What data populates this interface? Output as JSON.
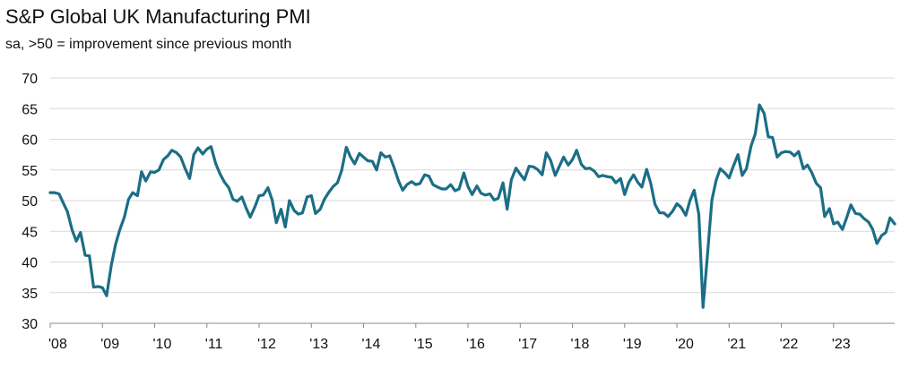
{
  "chart_data": {
    "type": "line",
    "title": "S&P Global UK Manufacturing PMI",
    "subtitle": "sa, >50 = improvement since previous month",
    "xlabel": "",
    "ylabel": "",
    "ylim": [
      30,
      70
    ],
    "yticks": [
      70,
      65,
      60,
      55,
      50,
      45,
      40,
      35,
      30
    ],
    "xlim": [
      "2008-01",
      "2023-12"
    ],
    "xtick_labels": [
      "'08",
      "'09",
      "'10",
      "'11",
      "'12",
      "'13",
      "'14",
      "'15",
      "'16",
      "'17",
      "'18",
      "'19",
      "'20",
      "'21",
      "'22",
      "'23"
    ],
    "grid": "horizontal",
    "legend": "none",
    "line_color": "#1b6e86",
    "grid_color": "#d9d9d9",
    "series": [
      {
        "values": [
          [
            2008.0,
            51.3
          ],
          [
            2008.08,
            51.3
          ],
          [
            2008.17,
            51.1
          ],
          [
            2008.25,
            49.6
          ],
          [
            2008.33,
            48.2
          ],
          [
            2008.42,
            45.2
          ],
          [
            2008.5,
            43.4
          ],
          [
            2008.58,
            44.8
          ],
          [
            2008.67,
            41.1
          ],
          [
            2008.75,
            41.0
          ],
          [
            2008.83,
            35.9
          ],
          [
            2008.92,
            36.0
          ],
          [
            2009.0,
            35.8
          ],
          [
            2009.08,
            34.5
          ],
          [
            2009.17,
            39.5
          ],
          [
            2009.25,
            42.8
          ],
          [
            2009.33,
            45.2
          ],
          [
            2009.42,
            47.3
          ],
          [
            2009.5,
            50.2
          ],
          [
            2009.58,
            51.3
          ],
          [
            2009.67,
            50.8
          ],
          [
            2009.75,
            54.7
          ],
          [
            2009.83,
            53.2
          ],
          [
            2009.92,
            54.7
          ],
          [
            2010.0,
            54.6
          ],
          [
            2010.08,
            55.0
          ],
          [
            2010.17,
            56.7
          ],
          [
            2010.25,
            57.3
          ],
          [
            2010.33,
            58.2
          ],
          [
            2010.42,
            57.8
          ],
          [
            2010.5,
            57.1
          ],
          [
            2010.58,
            55.3
          ],
          [
            2010.67,
            53.6
          ],
          [
            2010.75,
            57.5
          ],
          [
            2010.83,
            58.6
          ],
          [
            2010.92,
            57.6
          ],
          [
            2011.0,
            58.4
          ],
          [
            2011.08,
            58.8
          ],
          [
            2011.17,
            56.0
          ],
          [
            2011.25,
            54.4
          ],
          [
            2011.33,
            53.1
          ],
          [
            2011.42,
            52.1
          ],
          [
            2011.5,
            50.2
          ],
          [
            2011.58,
            49.9
          ],
          [
            2011.67,
            50.6
          ],
          [
            2011.75,
            48.8
          ],
          [
            2011.83,
            47.3
          ],
          [
            2011.92,
            49.0
          ],
          [
            2012.0,
            50.8
          ],
          [
            2012.08,
            50.9
          ],
          [
            2012.17,
            52.1
          ],
          [
            2012.25,
            50.1
          ],
          [
            2012.33,
            46.4
          ],
          [
            2012.42,
            48.6
          ],
          [
            2012.5,
            45.7
          ],
          [
            2012.58,
            50.0
          ],
          [
            2012.67,
            48.4
          ],
          [
            2012.75,
            47.8
          ],
          [
            2012.83,
            48.0
          ],
          [
            2012.92,
            50.6
          ],
          [
            2013.0,
            50.8
          ],
          [
            2013.08,
            47.9
          ],
          [
            2013.17,
            48.6
          ],
          [
            2013.25,
            50.2
          ],
          [
            2013.33,
            51.3
          ],
          [
            2013.42,
            52.3
          ],
          [
            2013.5,
            52.9
          ],
          [
            2013.58,
            54.9
          ],
          [
            2013.67,
            58.7
          ],
          [
            2013.75,
            57.1
          ],
          [
            2013.83,
            56.0
          ],
          [
            2013.92,
            57.7
          ],
          [
            2014.0,
            57.1
          ],
          [
            2014.08,
            56.5
          ],
          [
            2014.17,
            56.4
          ],
          [
            2014.25,
            55.0
          ],
          [
            2014.33,
            57.8
          ],
          [
            2014.42,
            57.1
          ],
          [
            2014.5,
            57.3
          ],
          [
            2014.58,
            55.5
          ],
          [
            2014.67,
            53.2
          ],
          [
            2014.75,
            51.7
          ],
          [
            2014.83,
            52.6
          ],
          [
            2014.92,
            53.1
          ],
          [
            2015.0,
            52.6
          ],
          [
            2015.08,
            52.8
          ],
          [
            2015.17,
            54.2
          ],
          [
            2015.25,
            54.0
          ],
          [
            2015.33,
            52.6
          ],
          [
            2015.42,
            52.2
          ],
          [
            2015.5,
            51.9
          ],
          [
            2015.58,
            51.9
          ],
          [
            2015.67,
            52.6
          ],
          [
            2015.75,
            51.6
          ],
          [
            2015.83,
            51.9
          ],
          [
            2015.92,
            54.5
          ],
          [
            2016.0,
            52.3
          ],
          [
            2016.08,
            51.0
          ],
          [
            2016.17,
            52.4
          ],
          [
            2016.25,
            51.2
          ],
          [
            2016.33,
            50.9
          ],
          [
            2016.42,
            51.1
          ],
          [
            2016.5,
            50.1
          ],
          [
            2016.58,
            50.4
          ],
          [
            2016.67,
            52.9
          ],
          [
            2016.75,
            48.6
          ],
          [
            2016.83,
            53.4
          ],
          [
            2016.92,
            55.3
          ],
          [
            2017.0,
            54.3
          ],
          [
            2017.08,
            53.4
          ],
          [
            2017.17,
            55.6
          ],
          [
            2017.25,
            55.5
          ],
          [
            2017.33,
            55.1
          ],
          [
            2017.42,
            54.2
          ],
          [
            2017.5,
            57.8
          ],
          [
            2017.58,
            56.6
          ],
          [
            2017.67,
            54.1
          ],
          [
            2017.75,
            55.6
          ],
          [
            2017.83,
            57.1
          ],
          [
            2017.92,
            55.8
          ],
          [
            2018.0,
            56.7
          ],
          [
            2018.08,
            58.2
          ],
          [
            2018.17,
            55.9
          ],
          [
            2018.25,
            55.2
          ],
          [
            2018.33,
            55.3
          ],
          [
            2018.42,
            54.8
          ],
          [
            2018.5,
            53.9
          ],
          [
            2018.58,
            54.1
          ],
          [
            2018.67,
            53.9
          ],
          [
            2018.75,
            53.8
          ],
          [
            2018.83,
            52.9
          ],
          [
            2018.92,
            53.6
          ],
          [
            2019.0,
            51.0
          ],
          [
            2019.08,
            53.0
          ],
          [
            2019.17,
            54.2
          ],
          [
            2019.25,
            53.0
          ],
          [
            2019.33,
            52.2
          ],
          [
            2019.42,
            55.1
          ],
          [
            2019.5,
            52.8
          ],
          [
            2019.58,
            49.4
          ],
          [
            2019.67,
            48.0
          ],
          [
            2019.75,
            48.0
          ],
          [
            2019.83,
            47.4
          ],
          [
            2019.92,
            48.3
          ],
          [
            2020.0,
            49.5
          ],
          [
            2020.08,
            48.9
          ],
          [
            2020.17,
            47.6
          ],
          [
            2020.25,
            50.0
          ],
          [
            2020.33,
            51.7
          ],
          [
            2020.42,
            47.8
          ],
          [
            2020.5,
            32.6
          ],
          [
            2020.58,
            40.7
          ],
          [
            2020.67,
            50.1
          ],
          [
            2020.75,
            53.3
          ],
          [
            2020.83,
            55.2
          ],
          [
            2020.92,
            54.5
          ],
          [
            2021.0,
            53.7
          ],
          [
            2021.08,
            55.6
          ],
          [
            2021.17,
            57.5
          ],
          [
            2021.25,
            54.1
          ],
          [
            2021.33,
            55.2
          ],
          [
            2021.42,
            58.9
          ],
          [
            2021.5,
            60.9
          ],
          [
            2021.58,
            65.6
          ],
          [
            2021.67,
            64.2
          ],
          [
            2021.75,
            60.4
          ],
          [
            2021.83,
            60.3
          ],
          [
            2021.92,
            57.1
          ],
          [
            2022.0,
            57.8
          ],
          [
            2022.08,
            58.0
          ],
          [
            2022.17,
            57.9
          ],
          [
            2022.25,
            57.3
          ],
          [
            2022.33,
            58.0
          ],
          [
            2022.42,
            55.2
          ],
          [
            2022.5,
            55.8
          ],
          [
            2022.58,
            54.6
          ],
          [
            2022.67,
            52.8
          ],
          [
            2022.75,
            52.1
          ],
          [
            2022.83,
            47.4
          ],
          [
            2022.92,
            48.7
          ],
          [
            2023.0,
            46.2
          ],
          [
            2023.08,
            46.5
          ],
          [
            2023.17,
            45.3
          ],
          [
            2023.25,
            47.2
          ],
          [
            2023.33,
            49.3
          ],
          [
            2023.42,
            47.9
          ],
          [
            2023.5,
            47.8
          ],
          [
            2023.58,
            47.1
          ],
          [
            2023.67,
            46.5
          ],
          [
            2023.75,
            45.3
          ],
          [
            2023.83,
            43.0
          ],
          [
            2023.92,
            44.3
          ],
          [
            2024.0,
            44.8
          ],
          [
            2024.08,
            47.2
          ],
          [
            2024.17,
            46.2
          ]
        ]
      }
    ]
  }
}
